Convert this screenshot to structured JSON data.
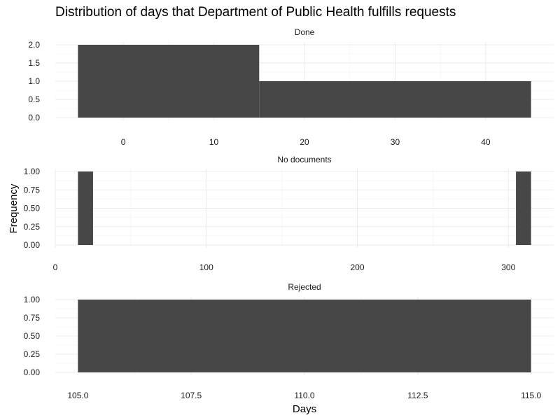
{
  "chart_data": {
    "type": "bar",
    "title": "Distribution of days that Department of Public Health fulfills requests",
    "xlabel": "Days",
    "ylabel": "Frequency",
    "grid": true,
    "legend": "none",
    "bar_color": "#474747",
    "panels": [
      {
        "name": "Done",
        "bins": [
          {
            "x0": -5,
            "x1": 15,
            "count": 2
          },
          {
            "x0": 15,
            "x1": 45,
            "count": 1
          }
        ],
        "xlim": [
          -7.5,
          47.5
        ],
        "xticks": [
          0,
          10,
          20,
          30,
          40
        ],
        "xtick_labels": [
          "0",
          "10",
          "20",
          "30",
          "40"
        ],
        "ylim": [
          0,
          2
        ],
        "yticks": [
          0,
          0.5,
          1,
          1.5,
          2
        ],
        "ytick_labels": [
          "0.0",
          "0.5",
          "1.0",
          "1.5",
          "2.0"
        ]
      },
      {
        "name": "No documents",
        "bins": [
          {
            "x0": 15,
            "x1": 25,
            "count": 1
          },
          {
            "x0": 305,
            "x1": 315,
            "count": 1
          }
        ],
        "xlim": [
          0,
          330
        ],
        "xticks": [
          0,
          100,
          200,
          300
        ],
        "xtick_labels": [
          "0",
          "100",
          "200",
          "300"
        ],
        "ylim": [
          0,
          1
        ],
        "yticks": [
          0,
          0.25,
          0.5,
          0.75,
          1
        ],
        "ytick_labels": [
          "0.00",
          "0.25",
          "0.50",
          "0.75",
          "1.00"
        ]
      },
      {
        "name": "Rejected",
        "bins": [
          {
            "x0": 105,
            "x1": 115,
            "count": 1
          }
        ],
        "xlim": [
          104.5,
          115.5
        ],
        "xticks": [
          105,
          107.5,
          110,
          112.5,
          115
        ],
        "xtick_labels": [
          "105.0",
          "107.5",
          "110.0",
          "112.5",
          "115.0"
        ],
        "ylim": [
          0,
          1
        ],
        "yticks": [
          0,
          0.25,
          0.5,
          0.75,
          1
        ],
        "ytick_labels": [
          "0.00",
          "0.25",
          "0.50",
          "0.75",
          "1.00"
        ]
      }
    ]
  }
}
